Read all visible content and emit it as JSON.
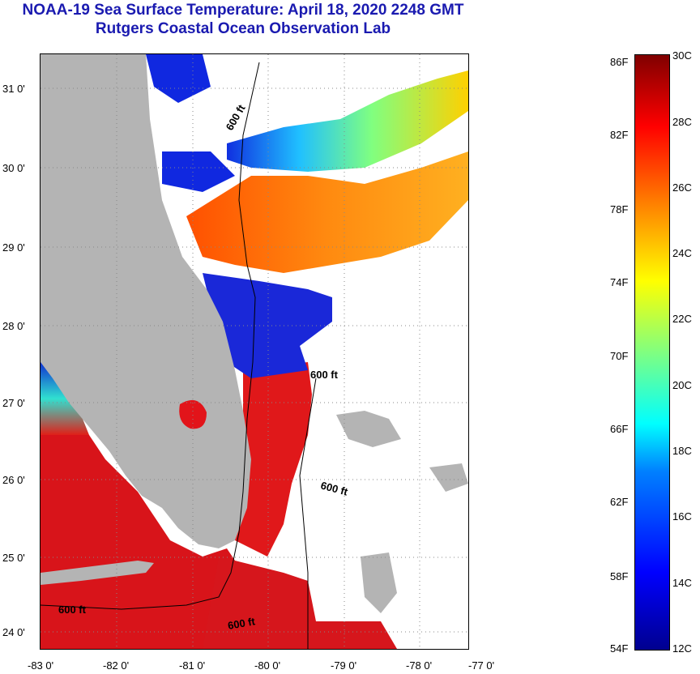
{
  "title": "NOAA-19 Sea Surface Temperature:  April 18, 2020 2248 GMT",
  "subtitle": "Rutgers Coastal Ocean Observation Lab",
  "lat_ticks": [
    "31 0'",
    "30 0'",
    "29 0'",
    "28 0'",
    "27 0'",
    "26 0'",
    "25 0'",
    "24 0'"
  ],
  "lon_ticks": [
    "-83 0'",
    "-82 0'",
    "-81 0'",
    "-80 0'",
    "-79 0'",
    "-78 0'",
    "-77 0'"
  ],
  "isobath_labels": [
    "600 ft",
    "600 ft",
    "600 ft",
    "600 ft",
    "600 ft"
  ],
  "colorbar": {
    "fahrenheit": [
      "86F",
      "82F",
      "78F",
      "74F",
      "70F",
      "66F",
      "62F",
      "58F",
      "54F"
    ],
    "celsius": [
      "30C",
      "28C",
      "26C",
      "24C",
      "22C",
      "20C",
      "18C",
      "16C",
      "14C",
      "12C"
    ],
    "range_c": [
      12,
      30
    ]
  },
  "colors": {
    "title": "#1a1ab0",
    "land": "#b4b4b4",
    "cloud": "#ffffff",
    "warm_water": "#e0141a",
    "cold_water": "#1020d8"
  }
}
